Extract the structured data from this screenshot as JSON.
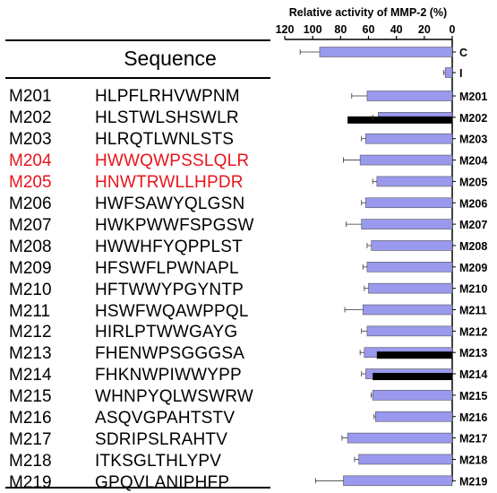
{
  "chart_data": {
    "type": "bar",
    "orientation": "horizontal",
    "x_direction": "reversed",
    "xlabel": "Relative activity of MMP-2 (%)",
    "xlim": [
      0,
      120
    ],
    "xticks": [
      120,
      100,
      80,
      60,
      40,
      20,
      0
    ],
    "table_header": "Sequence",
    "highlight_color": "#e8141c",
    "bar_color": "#9999ee",
    "overlay_color": "#000000",
    "categories": [
      "C",
      "I",
      "M201",
      "M202",
      "M203",
      "M204",
      "M205",
      "M206",
      "M207",
      "M208",
      "M209",
      "M210",
      "M211",
      "M212",
      "M213",
      "M214",
      "M215",
      "M216",
      "M217",
      "M218",
      "M219"
    ],
    "values": [
      95,
      5,
      61,
      53,
      62,
      66,
      54,
      62,
      65,
      58,
      61,
      60,
      64,
      61,
      63,
      62,
      57,
      55,
      75,
      67,
      78
    ],
    "errors": [
      14,
      1,
      11,
      4,
      3,
      12,
      3,
      3,
      11,
      3,
      3,
      3,
      13,
      4,
      3,
      3,
      1,
      1,
      4,
      3,
      20
    ],
    "overlay_values": [
      null,
      null,
      null,
      75,
      null,
      null,
      null,
      null,
      null,
      null,
      null,
      null,
      null,
      null,
      54,
      57,
      null,
      null,
      null,
      null,
      null
    ],
    "rows": [
      {
        "id": "M201",
        "seq": "HLPFLRHVWPNM",
        "highlight": false
      },
      {
        "id": "M202",
        "seq": "HLSTWLSHSWLR",
        "highlight": false
      },
      {
        "id": "M203",
        "seq": "HLRQTLWNLSTS",
        "highlight": false
      },
      {
        "id": "M204",
        "seq": "HWWQWPSSLQLR",
        "highlight": true
      },
      {
        "id": "M205",
        "seq": "HNWTRWLLHPDR",
        "highlight": true
      },
      {
        "id": "M206",
        "seq": "HWFSAWYQLGSN",
        "highlight": false
      },
      {
        "id": "M207",
        "seq": "HWKPWWFSPGSW",
        "highlight": false
      },
      {
        "id": "M208",
        "seq": "HWWHFYQPPLST",
        "highlight": false
      },
      {
        "id": "M209",
        "seq": "HFSWFLPWNAPL",
        "highlight": false
      },
      {
        "id": "M210",
        "seq": "HFTWWYPGYNTP",
        "highlight": false
      },
      {
        "id": "M211",
        "seq": "HSWFWQAWPPQL",
        "highlight": false
      },
      {
        "id": "M212",
        "seq": "HIRLPTWWGAYG",
        "highlight": false
      },
      {
        "id": "M213",
        "seq": "FHENWPSGGGSA",
        "highlight": false
      },
      {
        "id": "M214",
        "seq": "FHKNWPIWWYPP",
        "highlight": false
      },
      {
        "id": "M215",
        "seq": "WHNPYQLWSWRW",
        "highlight": false
      },
      {
        "id": "M216",
        "seq": "ASQVGPAHTSTV",
        "highlight": false
      },
      {
        "id": "M217",
        "seq": "SDRIPSLRAHTV",
        "highlight": false
      },
      {
        "id": "M218",
        "seq": "ITKSGLTHLYPV",
        "highlight": false
      },
      {
        "id": "M219",
        "seq": "GPQVLANIPHFP",
        "highlight": false
      }
    ]
  }
}
